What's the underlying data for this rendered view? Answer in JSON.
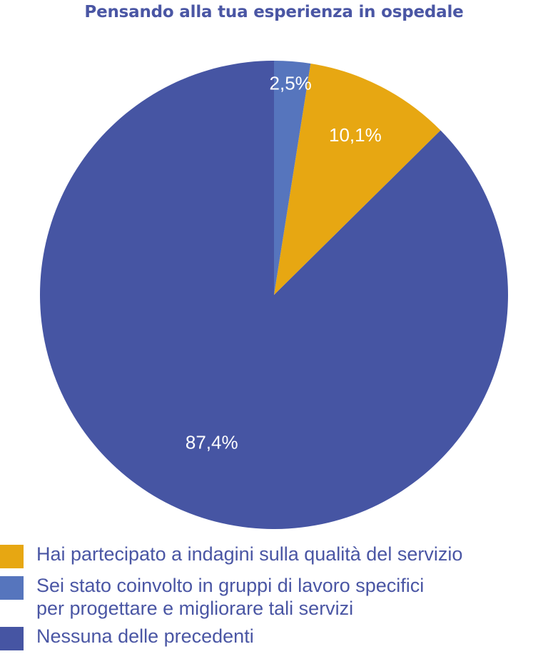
{
  "chart_data": {
    "type": "pie",
    "title": "Pensando alla tua esperienza in ospedale",
    "start_angle_deg": 0,
    "direction": "counterclockwise",
    "slices": [
      {
        "label": "Nessuna delle precedenti",
        "value": 87.4,
        "value_label": "87,4%",
        "color": "#4655a3"
      },
      {
        "label": "Hai partecipato a indagini sulla qualità del servizio",
        "value": 10.1,
        "value_label": "10,1%",
        "color": "#e7a712"
      },
      {
        "label": "Sei stato coinvolto in gruppi di lavoro specifici\nper progettare e migliorare tali servizi",
        "value": 2.5,
        "value_label": "2,5%",
        "color": "#5675bd"
      }
    ],
    "legend": {
      "placement": "bottom-left",
      "order": [
        1,
        2,
        0
      ]
    }
  }
}
